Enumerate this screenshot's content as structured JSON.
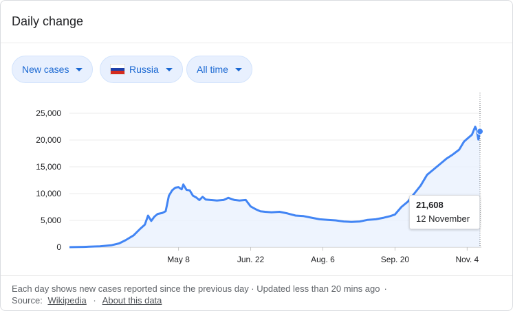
{
  "card": {
    "title": "Daily change"
  },
  "filters": {
    "metric": "New cases",
    "country": "Russia",
    "range": "All time"
  },
  "colors": {
    "line": "#4285f4",
    "area": "#e8f0fe",
    "chip_bg": "#e8f0fe",
    "chip_text": "#1967d2",
    "flag": [
      "#ffffff",
      "#1c3faa",
      "#d52b1e"
    ]
  },
  "chart_data": {
    "type": "area",
    "title": "",
    "xlabel": "",
    "ylabel": "",
    "ylim": [
      0,
      25000
    ],
    "y_ticks": [
      0,
      5000,
      10000,
      15000,
      20000,
      25000
    ],
    "y_tick_labels": [
      "0",
      "5,000",
      "10,000",
      "15,000",
      "20,000",
      "25,000"
    ],
    "x_tick_labels": [
      "May 8",
      "Jun. 22",
      "Aug. 6",
      "Sep. 20",
      "Nov. 4"
    ],
    "x_tick_dates": [
      "2020-05-08",
      "2020-06-22",
      "2020-08-06",
      "2020-09-20",
      "2020-11-04"
    ],
    "grid": true,
    "series": [
      {
        "x": [
          "2020-03-01",
          "2020-03-10",
          "2020-03-20",
          "2020-03-27",
          "2020-04-01",
          "2020-04-05",
          "2020-04-10",
          "2020-04-14",
          "2020-04-17",
          "2020-04-19",
          "2020-04-21",
          "2020-04-23",
          "2020-04-25",
          "2020-04-28",
          "2020-04-30",
          "2020-05-02",
          "2020-05-04",
          "2020-05-06",
          "2020-05-08",
          "2020-05-10",
          "2020-05-11",
          "2020-05-13",
          "2020-05-15",
          "2020-05-17",
          "2020-05-19",
          "2020-05-21",
          "2020-05-23",
          "2020-05-25",
          "2020-05-28",
          "2020-06-01",
          "2020-06-05",
          "2020-06-08",
          "2020-06-12",
          "2020-06-15",
          "2020-06-19",
          "2020-06-22",
          "2020-06-25",
          "2020-06-28",
          "2020-07-01",
          "2020-07-05",
          "2020-07-10",
          "2020-07-15",
          "2020-07-20",
          "2020-07-25",
          "2020-07-30",
          "2020-08-04",
          "2020-08-09",
          "2020-08-14",
          "2020-08-19",
          "2020-08-24",
          "2020-08-29",
          "2020-09-03",
          "2020-09-08",
          "2020-09-13",
          "2020-09-17",
          "2020-09-20",
          "2020-09-24",
          "2020-09-28",
          "2020-10-02",
          "2020-10-06",
          "2020-10-10",
          "2020-10-14",
          "2020-10-18",
          "2020-10-22",
          "2020-10-26",
          "2020-10-30",
          "2020-11-02",
          "2020-11-05",
          "2020-11-07",
          "2020-11-09",
          "2020-11-10",
          "2020-11-11",
          "2020-11-12"
        ],
        "y": [
          0,
          50,
          150,
          350,
          700,
          1300,
          2200,
          3400,
          4200,
          5900,
          4900,
          5700,
          6200,
          6400,
          6700,
          9600,
          10600,
          11100,
          11200,
          10800,
          11700,
          10700,
          10600,
          9600,
          9300,
          8800,
          9400,
          8900,
          8800,
          8700,
          8800,
          9200,
          8800,
          8700,
          8800,
          7600,
          7100,
          6700,
          6600,
          6500,
          6600,
          6300,
          5900,
          5800,
          5500,
          5200,
          5100,
          5000,
          4800,
          4700,
          4800,
          5100,
          5200,
          5500,
          5800,
          6100,
          7500,
          8500,
          10000,
          11500,
          13500,
          14500,
          15500,
          16500,
          17300,
          18200,
          19700,
          20500,
          21000,
          22500,
          21800,
          20100,
          21608
        ]
      }
    ],
    "highlight": {
      "value": "21,608",
      "date_label": "12 November",
      "x": "2020-11-12",
      "y": 21608
    }
  },
  "footer": {
    "note": "Each day shows new cases reported since the previous day · Updated less than 20 mins ago",
    "source_label": "Source:",
    "source_link": "Wikipedia",
    "about_link": "About this data"
  }
}
